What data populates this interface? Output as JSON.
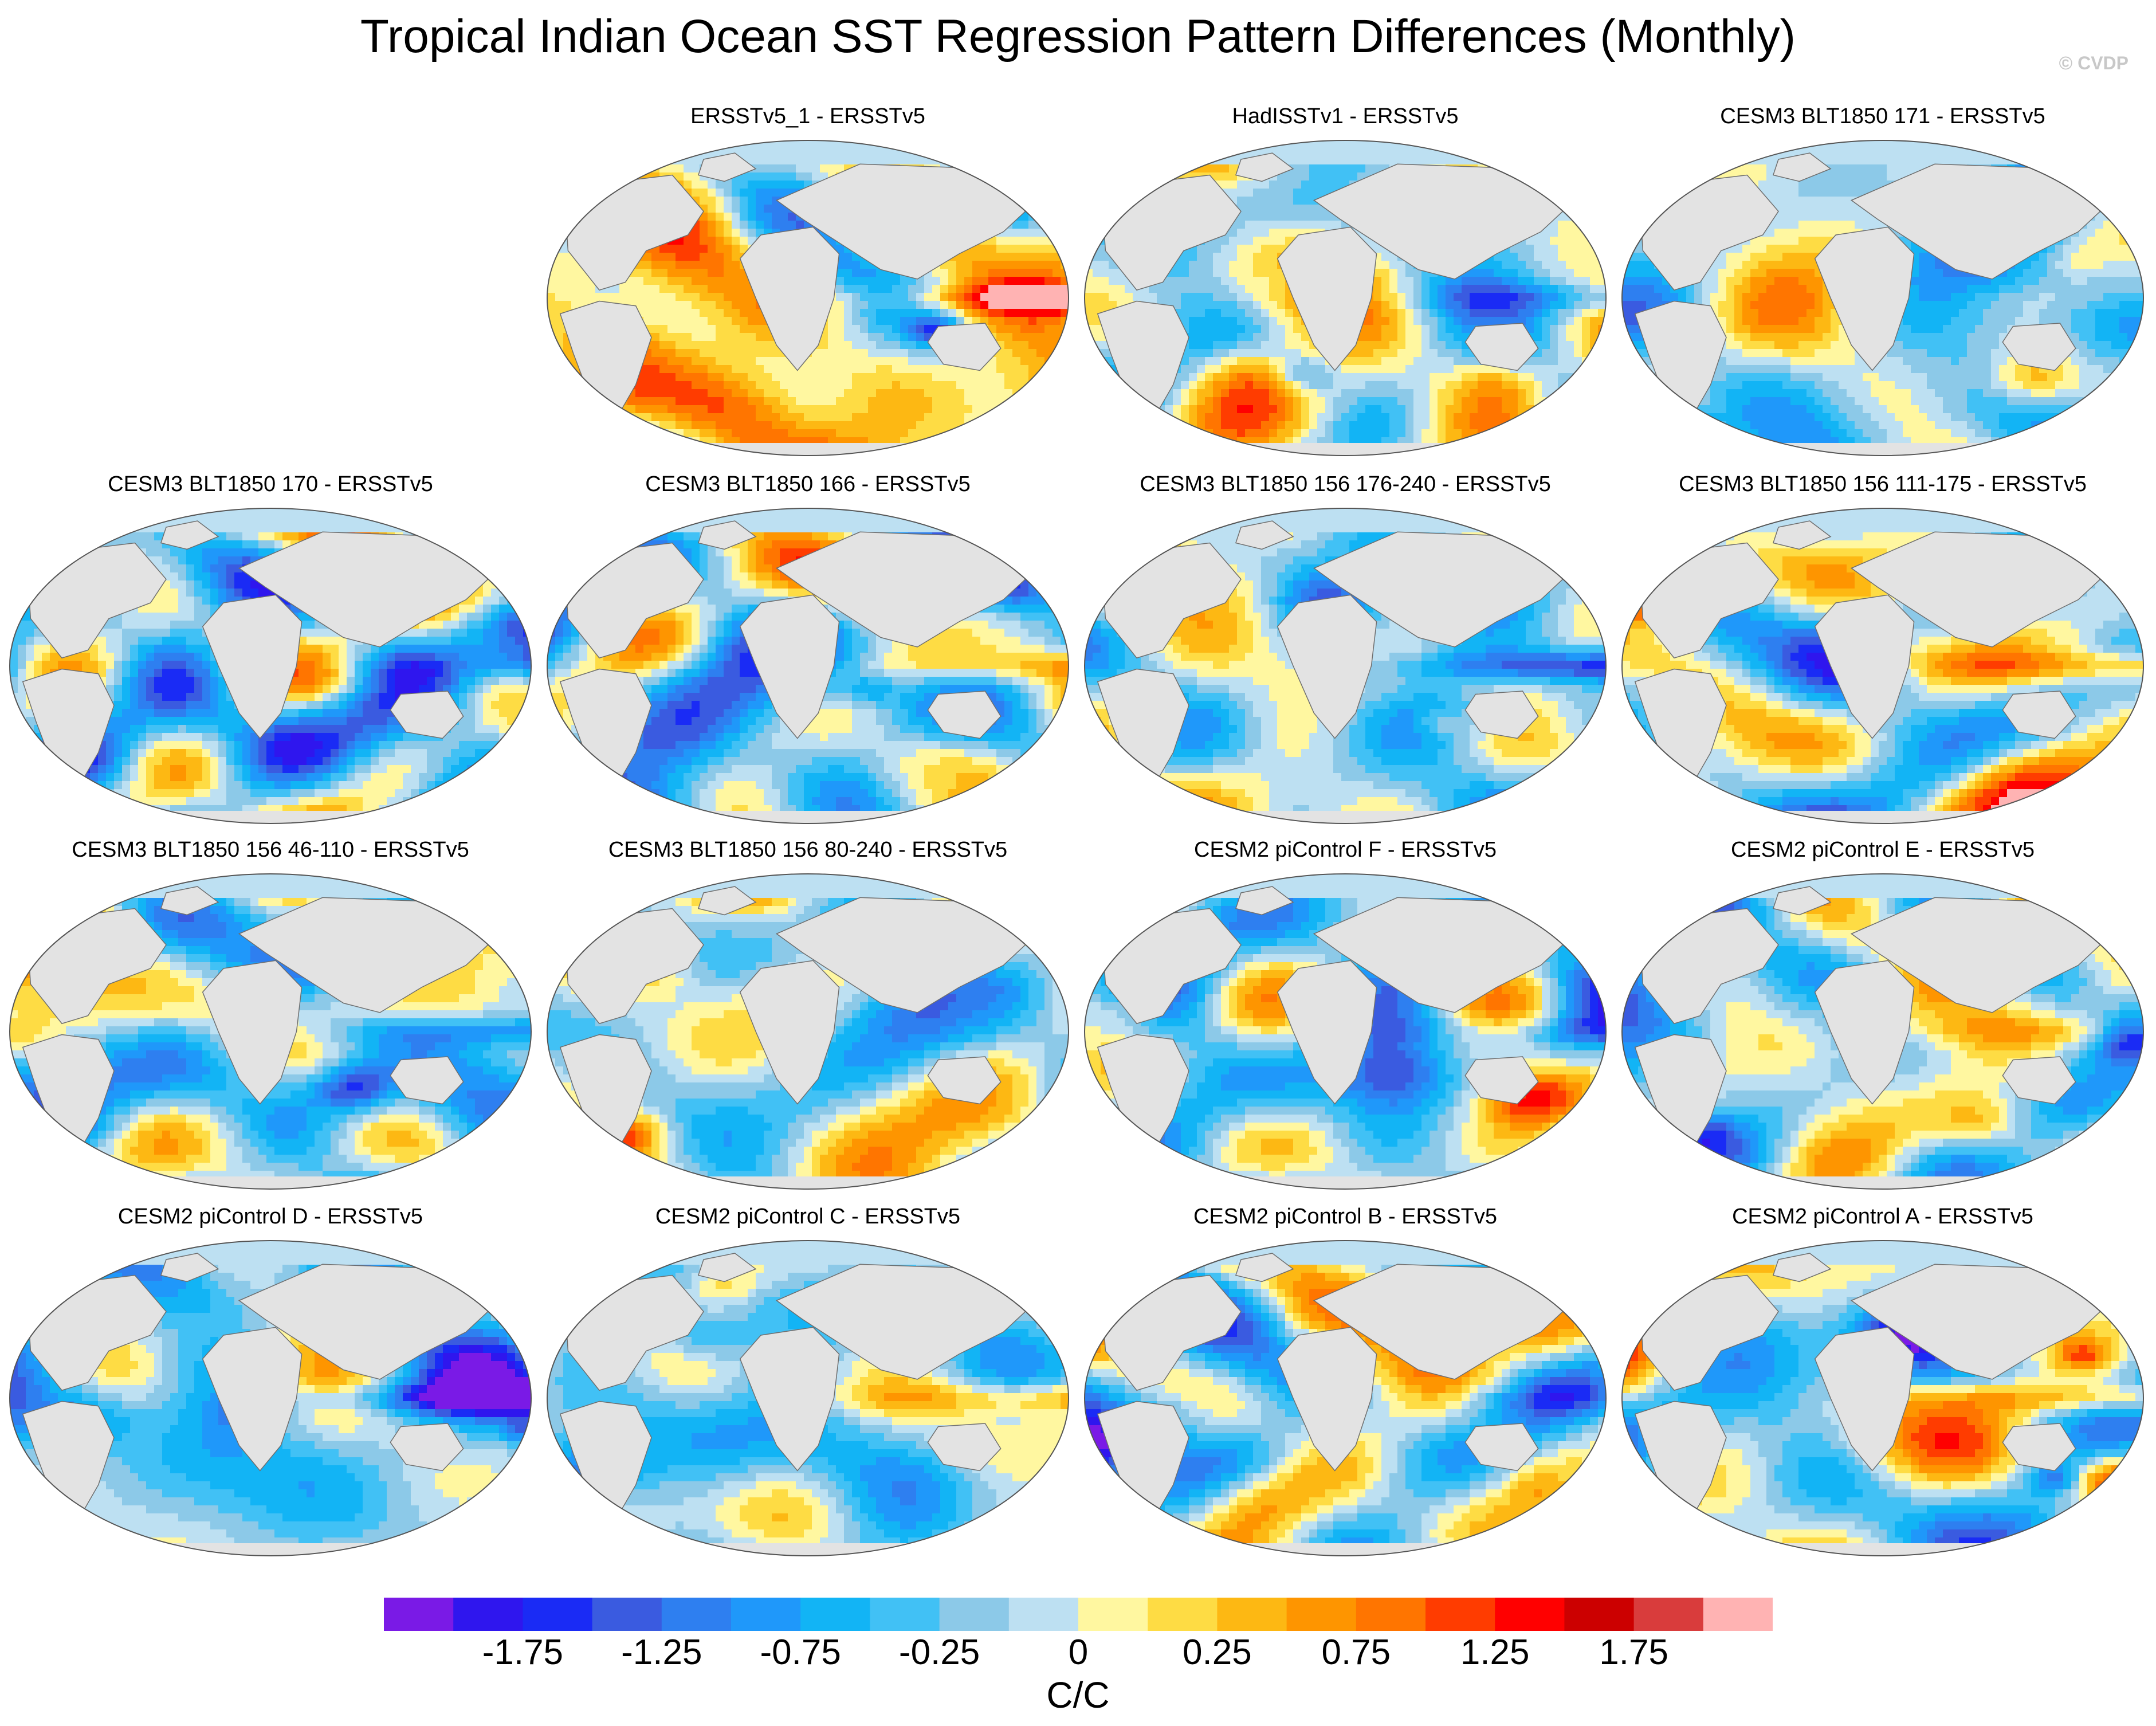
{
  "title": "Tropical Indian Ocean SST Regression Pattern Differences (Monthly)",
  "copyright": "© CVDP",
  "panels": [
    {
      "title": "ERSSTv5_1 - ERSSTv5",
      "seed": 11,
      "bias": 0.35
    },
    {
      "title": "HadISSTv1 - ERSSTv5",
      "seed": 23,
      "bias": 0.1
    },
    {
      "title": "CESM3 BLT1850 171 - ERSSTv5",
      "seed": 37,
      "bias": -0.15
    },
    {
      "title": "CESM3 BLT1850 170 - ERSSTv5",
      "seed": 41,
      "bias": -0.25
    },
    {
      "title": "CESM3 BLT1850 166 - ERSSTv5",
      "seed": 53,
      "bias": -0.2
    },
    {
      "title": "CESM3 BLT1850 156 176-240 - ERSSTv5",
      "seed": 67,
      "bias": 0.1
    },
    {
      "title": "CESM3 BLT1850 156 111-175 - ERSSTv5",
      "seed": 71,
      "bias": -0.05
    },
    {
      "title": "CESM3 BLT1850 156 46-110 - ERSSTv5",
      "seed": 83,
      "bias": 0.0
    },
    {
      "title": "CESM3 BLT1850 156 80-240 - ERSSTv5",
      "seed": 97,
      "bias": 0.05
    },
    {
      "title": "CESM2 piControl F - ERSSTv5",
      "seed": 101,
      "bias": -0.2
    },
    {
      "title": "CESM2 piControl E - ERSSTv5",
      "seed": 113,
      "bias": -0.1
    },
    {
      "title": "CESM2 piControl D - ERSSTv5",
      "seed": 127,
      "bias": -0.15
    },
    {
      "title": "CESM2 piControl C - ERSSTv5",
      "seed": 131,
      "bias": -0.1
    },
    {
      "title": "CESM2 piControl B - ERSSTv5",
      "seed": 139,
      "bias": -0.05
    },
    {
      "title": "CESM2 piControl A - ERSSTv5",
      "seed": 149,
      "bias": -0.05
    }
  ],
  "colorbar": {
    "colors": [
      "#7a1ae6",
      "#2f16ee",
      "#1a2bf5",
      "#3a5be0",
      "#2e7ff0",
      "#1f98fa",
      "#12b4f5",
      "#41c1f5",
      "#8cc9e8",
      "#bde0f2",
      "#fff7a0",
      "#fedc44",
      "#fdb813",
      "#fe9500",
      "#ff7500",
      "#ff3c00",
      "#ff0000",
      "#cc0000",
      "#d93c3c",
      "#ffb3b3"
    ],
    "land_color": "#e3e3e3",
    "ticks": [
      "-1.75",
      "-1.25",
      "-0.75",
      "-0.25",
      "0",
      "0.25",
      "0.75",
      "1.25",
      "1.75"
    ],
    "units": "C/C"
  }
}
